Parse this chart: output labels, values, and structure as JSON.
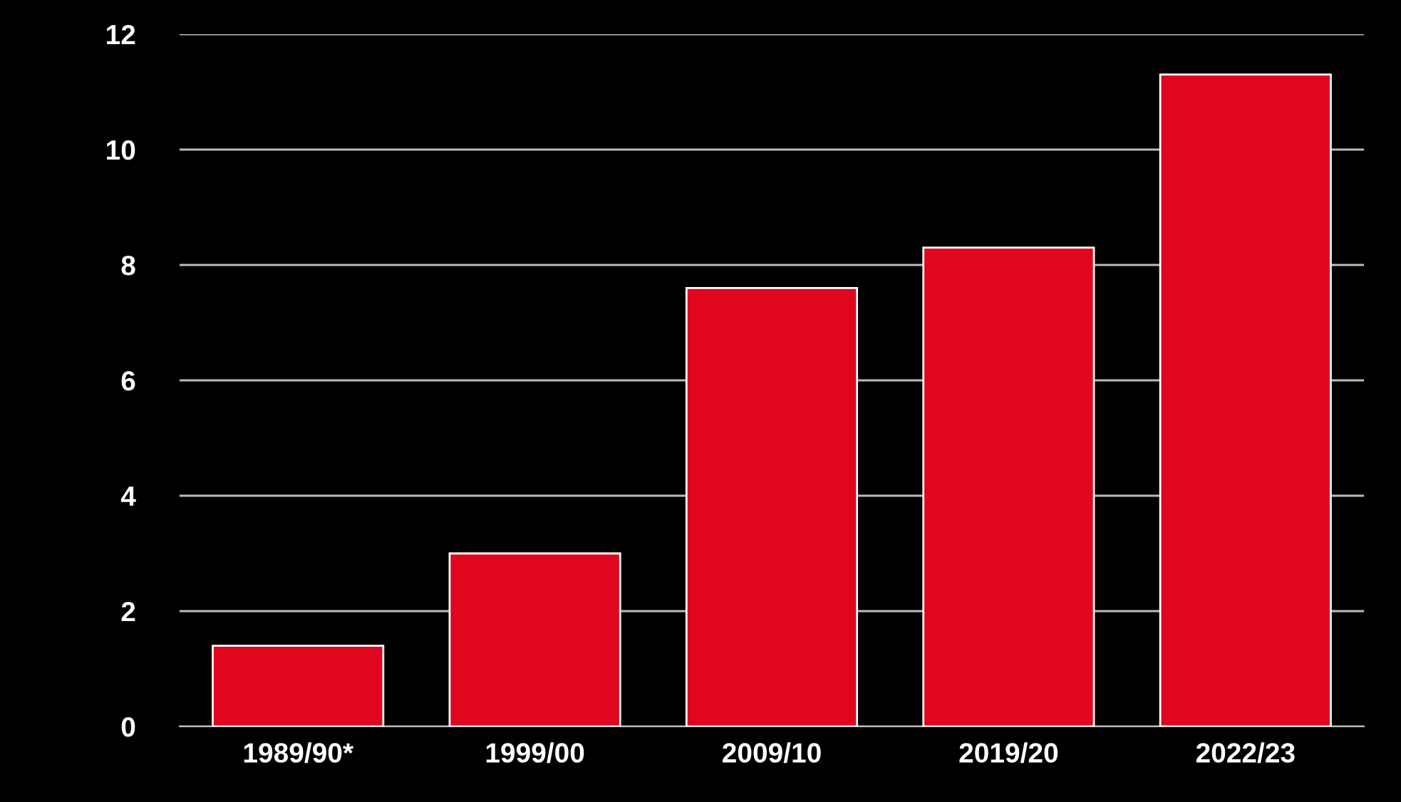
{
  "chart_data": {
    "type": "bar",
    "categories": [
      "1989/90*",
      "1999/00",
      "2009/10",
      "2019/20",
      "2022/23"
    ],
    "values": [
      1.4,
      3.0,
      7.6,
      8.3,
      11.3
    ],
    "color": "#e0061f",
    "ylim": [
      0,
      12
    ],
    "yticks": [
      0,
      2,
      4,
      6,
      8,
      10,
      12
    ],
    "grid": "y"
  }
}
